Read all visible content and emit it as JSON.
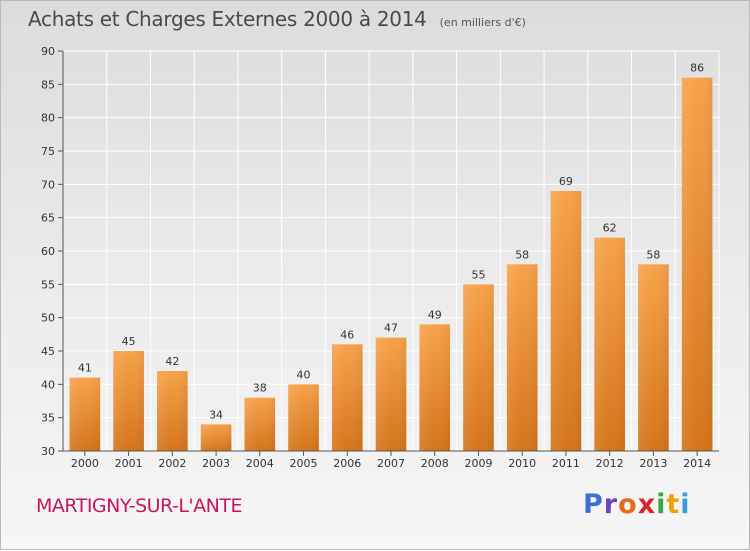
{
  "header": {
    "title": "Achats et Charges Externes 2000 à 2014",
    "subtitle": "(en milliers d'€)"
  },
  "commune": "MARTIGNY-SUR-L'ANTE",
  "logo": {
    "letters": [
      "P",
      "r",
      "o",
      "x",
      "i",
      "t",
      "i"
    ],
    "colors": [
      "#3b6fd1",
      "#6b45b8",
      "#e26b1c",
      "#d8262d",
      "#3aa83f",
      "#e8a40c",
      "#3b9ad8"
    ]
  },
  "chart_data": {
    "type": "bar",
    "title": "Achats et Charges Externes 2000 à 2014",
    "subtitle": "(en milliers d'€)",
    "categories": [
      "2000",
      "2001",
      "2002",
      "2003",
      "2004",
      "2005",
      "2006",
      "2007",
      "2008",
      "2009",
      "2010",
      "2011",
      "2012",
      "2013",
      "2014"
    ],
    "values": [
      41,
      45,
      42,
      34,
      38,
      40,
      46,
      47,
      49,
      55,
      58,
      69,
      62,
      58,
      86
    ],
    "ylim": [
      30,
      90
    ],
    "yticks": [
      30,
      35,
      40,
      45,
      50,
      55,
      60,
      65,
      70,
      75,
      80,
      85,
      90
    ],
    "grid": true,
    "bar_color_top": "#f7a24a",
    "bar_color_bottom": "#d4741a"
  }
}
